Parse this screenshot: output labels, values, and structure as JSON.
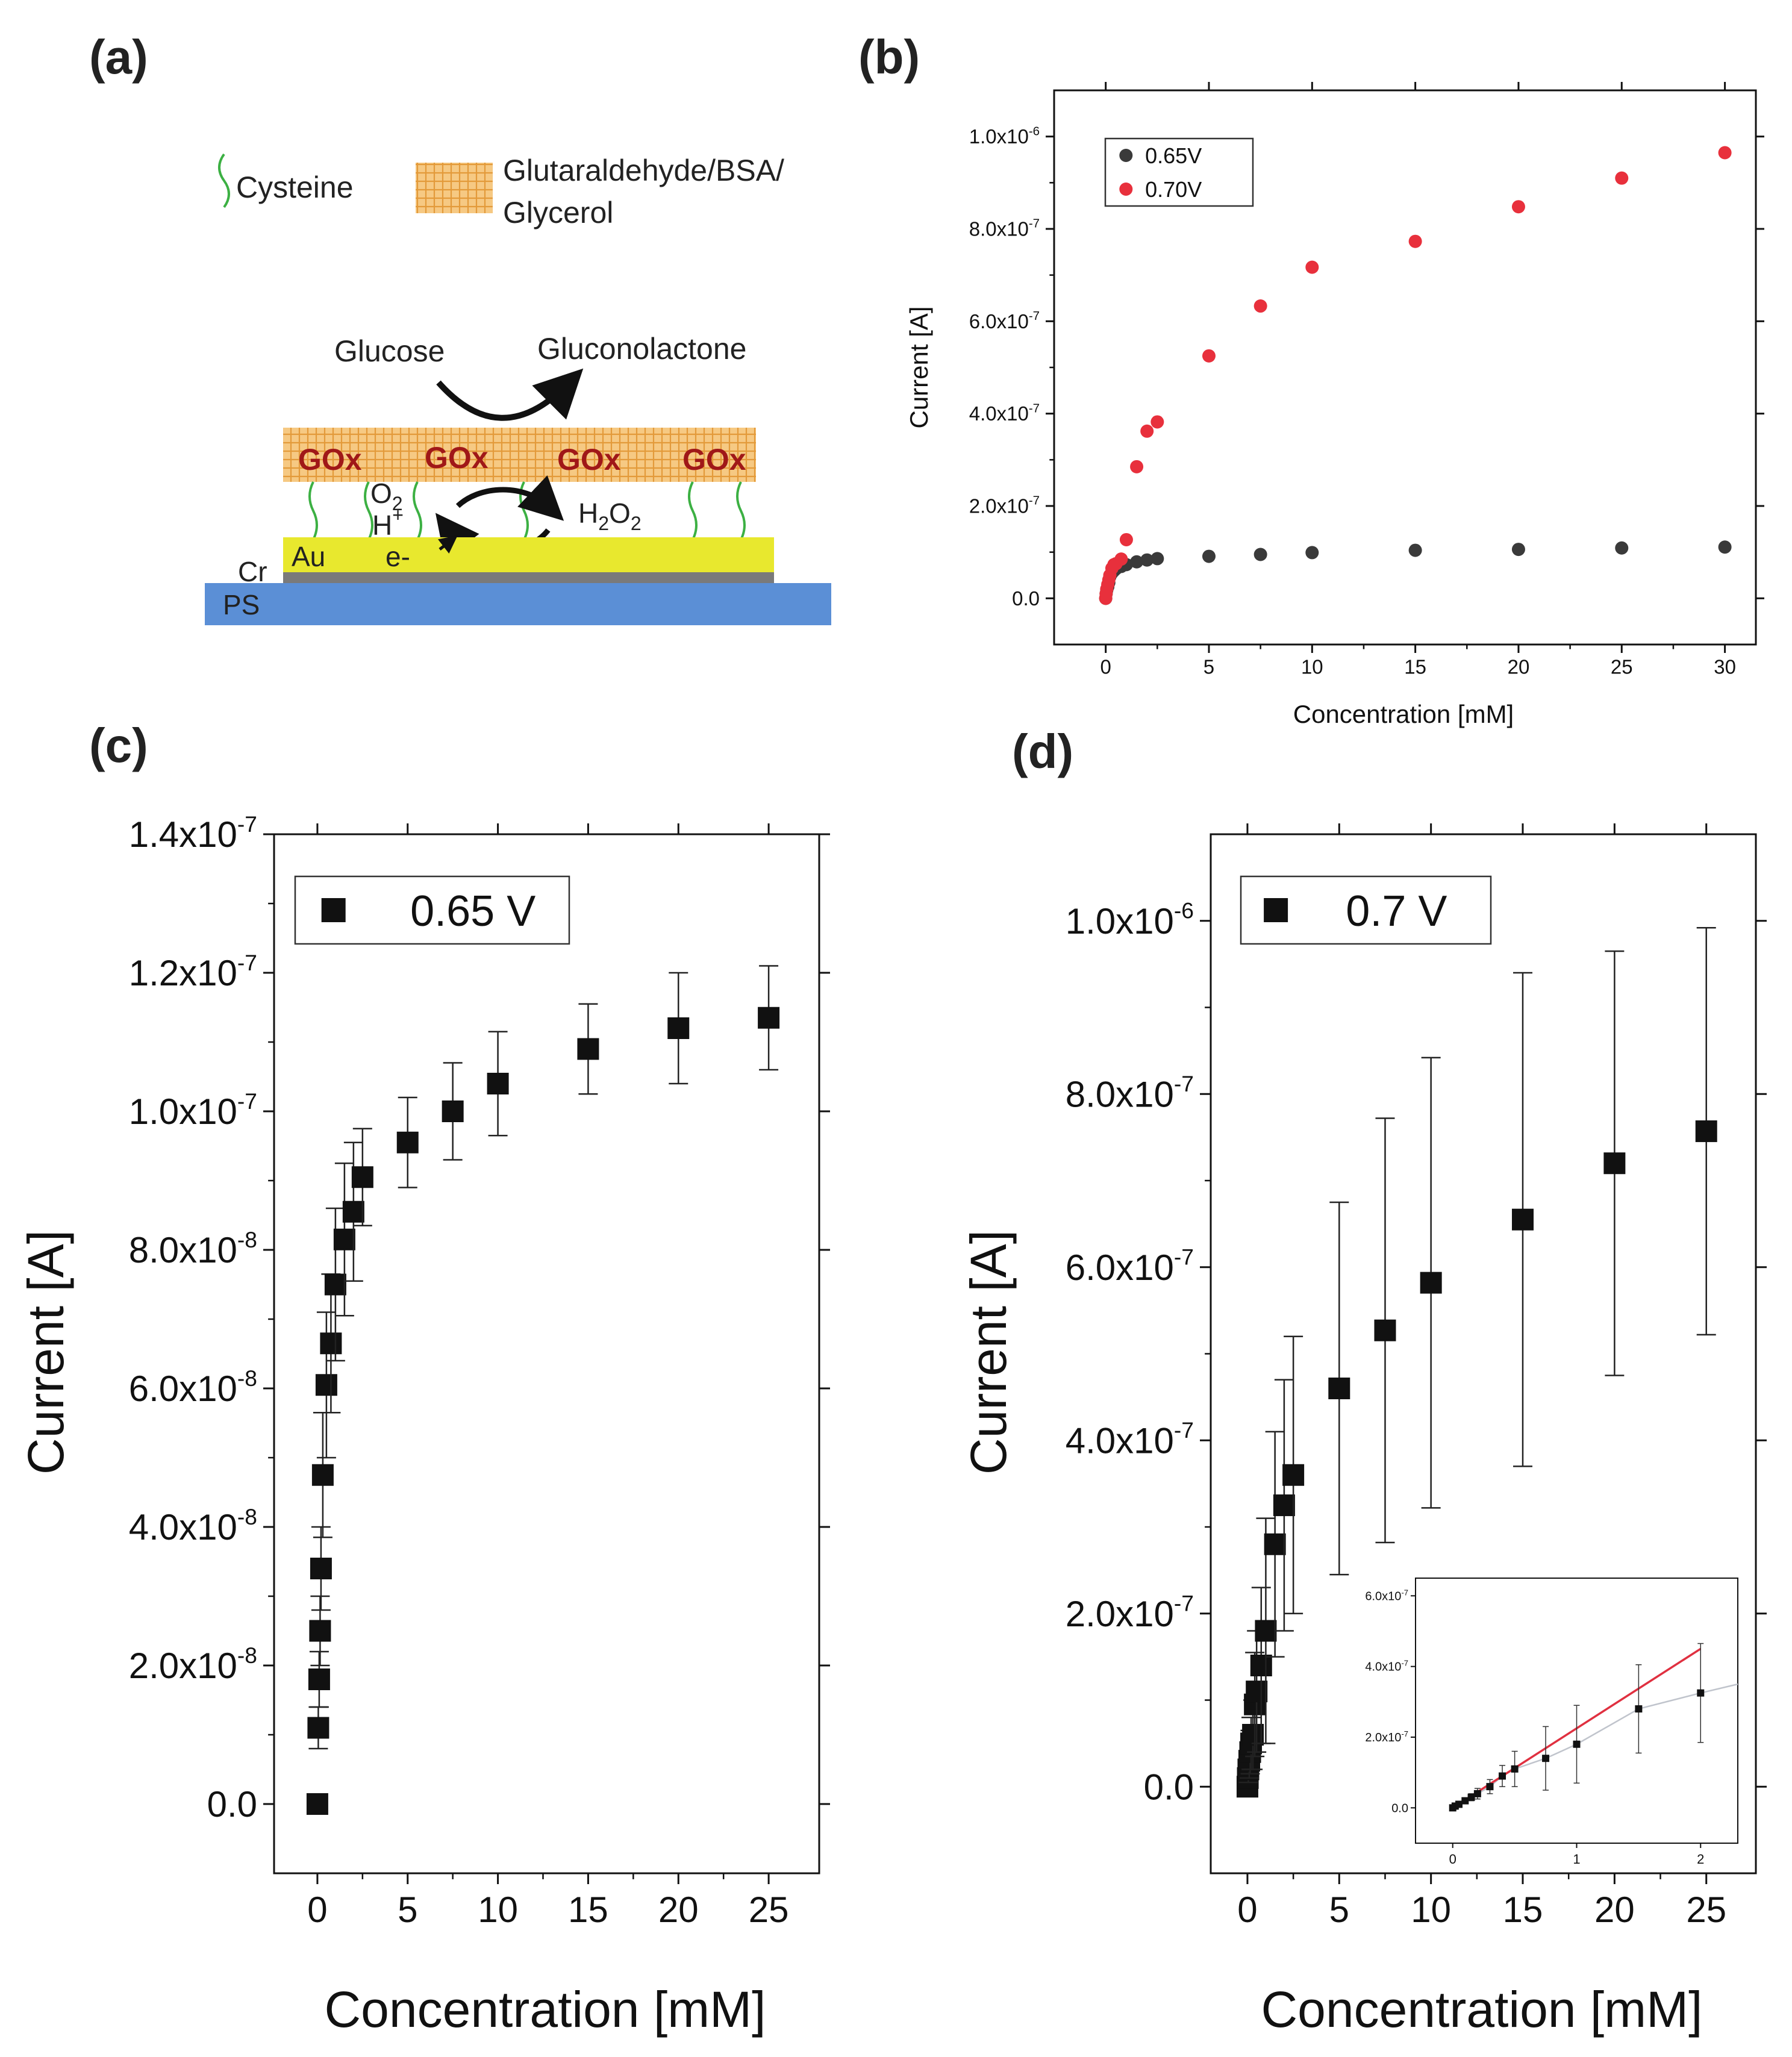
{
  "panel_labels": {
    "a": "(a)",
    "b": "(b)",
    "c": "(c)",
    "d": "(d)"
  },
  "diagram": {
    "legend": {
      "cysteine": "Cysteine",
      "matrix_line1": "Glutaraldehyde/BSA/",
      "matrix_line2": "Glycerol"
    },
    "glucose": "Glucose",
    "gluconolactone": "Gluconolactone",
    "gox": [
      "GOx",
      "GOx",
      "GOx",
      "GOx"
    ],
    "o2": "O",
    "o2_sub": "2",
    "h_plus": "H",
    "h_plus_sup": "+",
    "h2o2_h": "H",
    "h2o2_sub1": "2",
    "h2o2_o": "O",
    "h2o2_sub2": "2",
    "electron": "e-",
    "au": "Au",
    "cr": "Cr",
    "ps": "PS",
    "colors": {
      "matrix": "#f4c27a",
      "gold": "#e8e82e",
      "chrome": "#7a7a7a",
      "ps": "#5b8fd6",
      "gox_text": "#a01818",
      "cysteine": "#3cb043"
    }
  },
  "chart_data": [
    {
      "panel": "b",
      "type": "scatter",
      "xlabel": "Concentration [mM]",
      "ylabel": "Current [A]",
      "xlim": [
        -2.5,
        31.5
      ],
      "ylim": [
        -1e-07,
        1.1e-06
      ],
      "xticks": [
        0,
        5,
        10,
        15,
        20,
        25,
        30
      ],
      "xtick_labels": [
        "0",
        "5",
        "10",
        "15",
        "20",
        "25",
        "30"
      ],
      "yticks": [
        0,
        2e-07,
        4e-07,
        6e-07,
        8e-07,
        1e-06
      ],
      "ytick_mantissa": [
        "0.0",
        "2.0x10",
        "4.0x10",
        "6.0x10",
        "8.0x10",
        "1.0x10"
      ],
      "ytick_exp": [
        "",
        "-7",
        "-7",
        "-7",
        "-7",
        "-6"
      ],
      "legend_position": "top-left",
      "series": [
        {
          "name": "0.65V",
          "color": "#3a3a3a",
          "x": [
            0,
            0.02,
            0.05,
            0.1,
            0.15,
            0.2,
            0.3,
            0.4,
            0.5,
            0.75,
            1,
            1.5,
            2,
            2.5,
            5,
            7.5,
            10,
            15,
            20,
            25,
            30
          ],
          "y": [
            0,
            1e-08,
            1.8e-08,
            2.5e-08,
            3.4e-08,
            4.7e-08,
            5.5e-08,
            6e-08,
            6.4e-08,
            6.9e-08,
            7.3e-08,
            7.9e-08,
            8.3e-08,
            8.6e-08,
            9.1e-08,
            9.5e-08,
            9.9e-08,
            1.04e-07,
            1.06e-07,
            1.09e-07,
            1.11e-07
          ]
        },
        {
          "name": "0.70V",
          "color": "#e8303c",
          "x": [
            0,
            0.02,
            0.05,
            0.1,
            0.15,
            0.2,
            0.3,
            0.4,
            0.5,
            0.75,
            1,
            1.5,
            2,
            2.5,
            5,
            7.5,
            10,
            15,
            20,
            25,
            30
          ],
          "y": [
            0,
            1e-08,
            2e-08,
            3e-08,
            4e-08,
            5e-08,
            6.5e-08,
            7.3e-08,
            7.5e-08,
            8.5e-08,
            1.27e-07,
            2.85e-07,
            3.62e-07,
            3.82e-07,
            5.25e-07,
            6.33e-07,
            7.17e-07,
            7.73e-07,
            8.48e-07,
            9.1e-07,
            9.65e-07
          ]
        }
      ]
    },
    {
      "panel": "c",
      "type": "scatter",
      "xlabel": "Concentration [mM]",
      "ylabel": "Current [A]",
      "xlim": [
        -2.4,
        27.8
      ],
      "ylim": [
        -1e-08,
        1.4e-07
      ],
      "xticks": [
        0,
        5,
        10,
        15,
        20,
        25
      ],
      "xtick_labels": [
        "0",
        "5",
        "10",
        "15",
        "20",
        "25"
      ],
      "yticks": [
        0,
        2e-08,
        4e-08,
        6e-08,
        8e-08,
        1e-07,
        1.2e-07,
        1.4e-07
      ],
      "ytick_mantissa": [
        "0.0",
        "2.0x10",
        "4.0x10",
        "6.0x10",
        "8.0x10",
        "1.0x10",
        "1.2x10",
        "1.4x10"
      ],
      "ytick_exp": [
        "",
        "-8",
        "-8",
        "-8",
        "-8",
        "-7",
        "-7",
        "-7"
      ],
      "legend_position": "top-left",
      "series": [
        {
          "name": "0.65 V",
          "color": "#111111",
          "x": [
            0,
            0.05,
            0.1,
            0.15,
            0.2,
            0.3,
            0.5,
            0.75,
            1,
            1.5,
            2,
            2.5,
            5,
            7.5,
            10,
            15,
            20,
            25
          ],
          "y": [
            0,
            1.1e-08,
            1.8e-08,
            2.5e-08,
            3.4e-08,
            4.75e-08,
            6.05e-08,
            6.65e-08,
            7.5e-08,
            8.15e-08,
            8.55e-08,
            9.05e-08,
            9.55e-08,
            1e-07,
            1.04e-07,
            1.09e-07,
            1.12e-07,
            1.135e-07
          ],
          "err": [
            0,
            3e-09,
            4e-09,
            5e-09,
            6e-09,
            9e-09,
            1.05e-08,
            1e-08,
            1.1e-08,
            1.1e-08,
            1e-08,
            7e-09,
            6.5e-09,
            7e-09,
            7.5e-09,
            6.5e-09,
            8e-09,
            7.5e-09
          ]
        }
      ]
    },
    {
      "panel": "d",
      "type": "scatter",
      "xlabel": "Concentration [mM]",
      "ylabel": "Current [A]",
      "xlim": [
        -2.0,
        27.7
      ],
      "ylim": [
        -1e-07,
        1.1e-06
      ],
      "xticks": [
        0,
        5,
        10,
        15,
        20,
        25
      ],
      "xtick_labels": [
        "0",
        "5",
        "10",
        "15",
        "20",
        "25"
      ],
      "yticks": [
        0,
        2e-07,
        4e-07,
        6e-07,
        8e-07,
        1e-06
      ],
      "ytick_mantissa": [
        "0.0",
        "2.0x10",
        "4.0x10",
        "6.0x10",
        "8.0x10",
        "1.0x10"
      ],
      "ytick_exp": [
        "",
        "-7",
        "-7",
        "-7",
        "-7",
        "-6"
      ],
      "legend_position": "top-left",
      "series": [
        {
          "name": "0.7 V",
          "color": "#111111",
          "x": [
            0,
            0.02,
            0.05,
            0.1,
            0.15,
            0.2,
            0.3,
            0.4,
            0.5,
            0.75,
            1,
            1.5,
            2,
            2.5,
            5,
            7.5,
            10,
            15,
            20,
            25
          ],
          "y": [
            0,
            1e-08,
            2e-08,
            3e-08,
            4e-08,
            5e-08,
            6e-08,
            9.5e-08,
            1.1e-07,
            1.4e-07,
            1.8e-07,
            2.8e-07,
            3.25e-07,
            3.6e-07,
            4.6e-07,
            5.27e-07,
            5.82e-07,
            6.55e-07,
            7.2e-07,
            7.57e-07
          ],
          "err": [
            0,
            1e-08,
            1.5e-08,
            2e-08,
            2.5e-08,
            3e-08,
            4e-08,
            6e-08,
            7e-08,
            9e-08,
            1.3e-07,
            1.3e-07,
            1.45e-07,
            1.6e-07,
            2.15e-07,
            2.45e-07,
            2.6e-07,
            2.85e-07,
            2.45e-07,
            2.35e-07
          ]
        }
      ],
      "inset": {
        "type": "scatter",
        "xlim": [
          -0.3,
          2.3
        ],
        "ylim": [
          -1e-07,
          6.5e-07
        ],
        "xticks": [
          0,
          1,
          2
        ],
        "xtick_labels": [
          "0",
          "1",
          "2"
        ],
        "yticks": [
          0,
          2e-07,
          4e-07,
          6e-07
        ],
        "ytick_mantissa": [
          "0.0",
          "2.0x10",
          "4.0x10",
          "6.0x10"
        ],
        "ytick_exp": [
          "",
          "-7",
          "-7",
          "-7"
        ],
        "series": {
          "x": [
            0,
            0.02,
            0.05,
            0.1,
            0.15,
            0.2,
            0.3,
            0.4,
            0.5,
            0.75,
            1,
            1.5,
            2
          ],
          "y": [
            0,
            5e-09,
            1e-08,
            2e-08,
            3e-08,
            4e-08,
            6e-08,
            9e-08,
            1.1e-07,
            1.4e-07,
            1.8e-07,
            2.8e-07,
            3.25e-07
          ],
          "err": [
            0,
            3e-09,
            5e-09,
            8e-09,
            1e-08,
            1.5e-08,
            2e-08,
            3e-08,
            5e-08,
            9e-08,
            1.1e-07,
            1.25e-07,
            1.4e-07
          ]
        },
        "fit_line": {
          "color": "#e03040",
          "x": [
            0,
            2
          ],
          "y": [
            0,
            4.5e-07
          ]
        },
        "trend_color": "#c0c4cc",
        "trend_extend": {
          "x": 2.3,
          "y": 3.5e-07
        }
      }
    }
  ]
}
